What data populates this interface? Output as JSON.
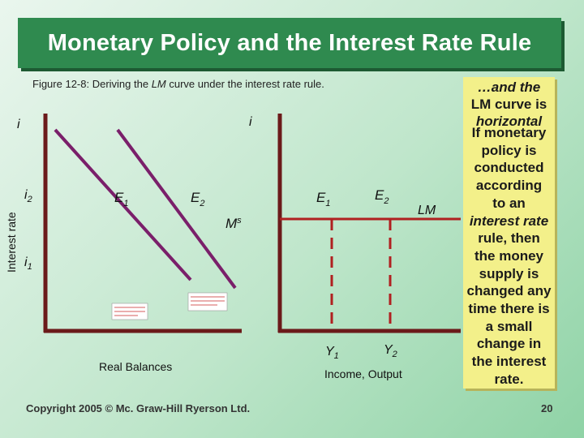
{
  "slide": {
    "title": "Monetary Policy and the Interest Rate Rule",
    "caption_prefix": "Figure 12-8: Deriving the ",
    "caption_lm": "LM",
    "caption_suffix": " curve under the interest rate rule.",
    "copyright": "Copyright 2005 © Mc. Graw-Hill Ryerson Ltd.",
    "page_number": "20"
  },
  "left_panel": {
    "y_axis_var": "i",
    "y_axis_title": "Interest rate",
    "tick_i2": "i",
    "tick_i2_sub": "2",
    "tick_i1": "i",
    "tick_i1_sub": "1",
    "point_e1": "E",
    "point_e1_sub": "1",
    "point_e2": "E",
    "point_e2_sub": "2",
    "supply_label": "M",
    "supply_sup": "s",
    "x_axis_title": "Real Balances"
  },
  "right_panel": {
    "y_axis_var": "i",
    "point_e1": "E",
    "point_e1_sub": "1",
    "point_e2": "E",
    "point_e2_sub": "2",
    "lm_label": "LM",
    "tick_y1": "Y",
    "tick_y1_sub": "1",
    "tick_y2": "Y",
    "tick_y2_sub": "2",
    "x_axis_title": "Income, Output"
  },
  "side_note": {
    "top_line1": "…and the",
    "top_line2": "LM curve is",
    "top_line3": "horizontal",
    "main_line1": "If monetary",
    "main_line2": "policy is",
    "main_line3": "conducted",
    "main_line4": "according",
    "main_line5": "to an",
    "main_line6": "interest rate",
    "main_line7": "rule, then",
    "main_line8": "the money",
    "main_line9": "supply is",
    "main_line10": "changed any",
    "main_line11": "time there is",
    "main_line12": "a small",
    "main_line13": "change in",
    "main_line14": "the interest",
    "main_line15": "rate."
  },
  "colors": {
    "title_bg": "#2f8a4f",
    "axis": "#6b1a1a",
    "curve": "#7a1f6a",
    "dashed": "#b02020",
    "lm_line": "#b02020",
    "note_bg": "#f3f08a"
  }
}
